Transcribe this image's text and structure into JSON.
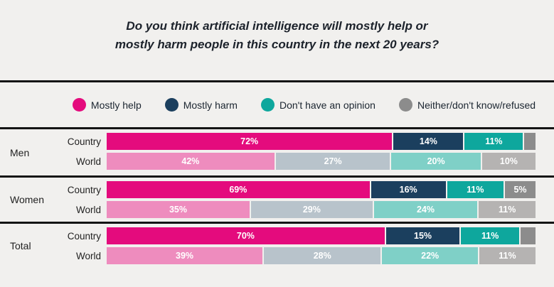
{
  "title": {
    "line1": "Do you think artificial intelligence will mostly help or",
    "line2": "mostly harm people in this country in the next 20 years?"
  },
  "colors": {
    "background": "#f1f0ee",
    "separator": "#141414",
    "title_text": "#1c222b",
    "bar_value_text": "#ffffff"
  },
  "chart_data": {
    "type": "bar",
    "orientation": "horizontal-stacked",
    "units": "percent",
    "legend_position": "top",
    "legend": [
      {
        "label": "Mostly help",
        "color": "#e40b7d"
      },
      {
        "label": "Mostly harm",
        "color": "#1b3f5e"
      },
      {
        "label": "Don't have an opinion",
        "color": "#0ea79d"
      },
      {
        "label": "Neither/don't know/refused",
        "color": "#8c8c8c"
      }
    ],
    "palettes": {
      "strong": [
        "#e40b7d",
        "#1b3f5e",
        "#0ea79d",
        "#8c8c8c"
      ],
      "muted": [
        "#ee8cbe",
        "#b8c3cb",
        "#7fd0c7",
        "#b5b3b2"
      ]
    },
    "groups": [
      {
        "label": "Men",
        "rows": [
          {
            "label": "Country",
            "palette": "strong",
            "segments": [
              {
                "value": 72,
                "display": "72%"
              },
              {
                "value": 14,
                "display": "14%"
              },
              {
                "value": 11,
                "display": "11%"
              },
              {
                "value": 3,
                "display": ""
              }
            ]
          },
          {
            "label": "World",
            "palette": "muted",
            "segments": [
              {
                "value": 42,
                "display": "42%"
              },
              {
                "value": 27,
                "display": "27%"
              },
              {
                "value": 20,
                "display": "20%"
              },
              {
                "value": 10,
                "display": "10%"
              }
            ]
          }
        ]
      },
      {
        "label": "Women",
        "rows": [
          {
            "label": "Country",
            "palette": "strong",
            "segments": [
              {
                "value": 69,
                "display": "69%"
              },
              {
                "value": 16,
                "display": "16%"
              },
              {
                "value": 11,
                "display": "11%"
              },
              {
                "value": 5,
                "display": "5%"
              }
            ]
          },
          {
            "label": "World",
            "palette": "muted",
            "segments": [
              {
                "value": 35,
                "display": "35%"
              },
              {
                "value": 29,
                "display": "29%"
              },
              {
                "value": 24,
                "display": "24%"
              },
              {
                "value": 11,
                "display": "11%"
              }
            ]
          }
        ]
      },
      {
        "label": "Total",
        "rows": [
          {
            "label": "Country",
            "palette": "strong",
            "segments": [
              {
                "value": 70,
                "display": "70%"
              },
              {
                "value": 15,
                "display": "15%"
              },
              {
                "value": 11,
                "display": "11%"
              },
              {
                "value": 4,
                "display": ""
              }
            ]
          },
          {
            "label": "World",
            "palette": "muted",
            "segments": [
              {
                "value": 39,
                "display": "39%"
              },
              {
                "value": 28,
                "display": "28%"
              },
              {
                "value": 22,
                "display": "22%"
              },
              {
                "value": 11,
                "display": "11%"
              }
            ]
          }
        ]
      }
    ]
  }
}
